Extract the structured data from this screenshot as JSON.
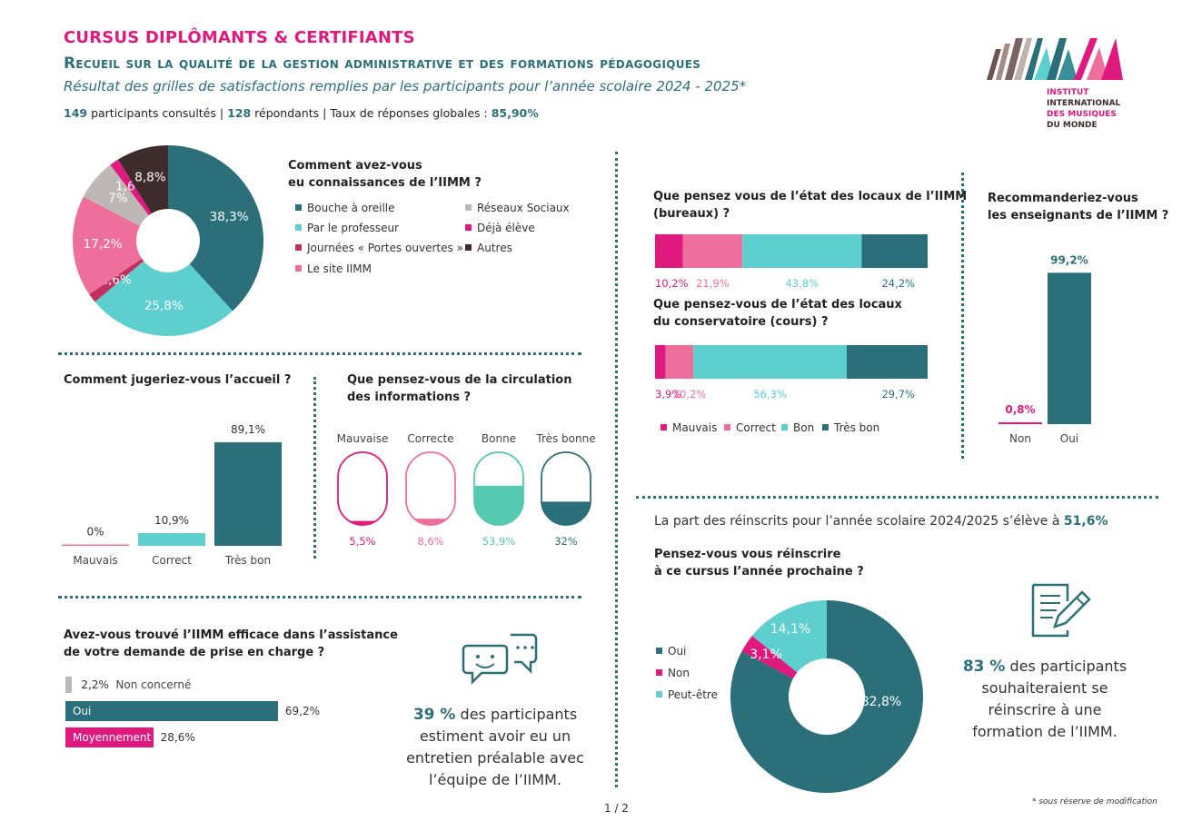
{
  "header": {
    "title1": "CURSUS DIPLÔMANTS & CERTIFIANTS",
    "title2": "Recueil sur la qualité de la gestion administrative et des formations pédagogiques",
    "title3": "Résultat des grilles de satisfactions remplies par les participants pour l’année scolaire 2024 - 2025*",
    "stats": {
      "consulted_num": "149",
      "consulted_label": "participants consultés",
      "sep1": "|",
      "respondents_num": "128",
      "respondents_label": "répondants",
      "sep2": "|",
      "rate_label": "Taux de réponses globales :",
      "rate_value": "85,90%"
    }
  },
  "logo": {
    "line1": "INSTITUT",
    "line2": "INTERNATIONAL",
    "line3": "DES MUSIQUES",
    "line4": "DU MONDE"
  },
  "colors": {
    "teal_dark": "#2b6f7b",
    "teal_light": "#5ecfcf",
    "pink": "#e0197f",
    "pink_light": "#ee6f9b",
    "crimson": "#c2305d",
    "grey": "#bdb7b5",
    "brown": "#3e2c2c",
    "mint": "#55c9b0"
  },
  "chart_data": [
    {
      "id": "connaissance",
      "type": "pie",
      "title": "Comment avez-vous eu connaissances de l’IIMM ?",
      "title_lines": [
        "Comment avez-vous",
        "eu connaissances de l’IIMM ?"
      ],
      "slices": [
        {
          "name": "Bouche à oreille",
          "value": 38.3,
          "label": "38,3%",
          "color": "#2b6f7b"
        },
        {
          "name": "Par le professeur",
          "value": 25.8,
          "label": "25,8%",
          "color": "#5ecfcf"
        },
        {
          "name": "Journées « Portes ouvertes »",
          "value": 1.6,
          "label": "1,6%",
          "color": "#c2305d"
        },
        {
          "name": "Le site IIMM",
          "value": 17.2,
          "label": "17,2%",
          "color": "#ee6f9b"
        },
        {
          "name": "Réseaux Sociaux",
          "value": 7.0,
          "label": "7%",
          "color": "#bdb7b5"
        },
        {
          "name": "Déjà élève",
          "value": 1.6,
          "label": "1,6%",
          "color": "#e0197f"
        },
        {
          "name": "Autres",
          "value": 8.8,
          "label": "8,8%",
          "color": "#3e2c2c"
        }
      ],
      "legend": [
        {
          "name": "Bouche à oreille",
          "color": "#2b6f7b"
        },
        {
          "name": "Réseaux Sociaux",
          "color": "#bdb7b5"
        },
        {
          "name": "Par le professeur",
          "color": "#5ecfcf"
        },
        {
          "name": "Déjà élève",
          "color": "#e0197f"
        },
        {
          "name": "Journées « Portes ouvertes »",
          "color": "#c2305d"
        },
        {
          "name": "Autres",
          "color": "#3e2c2c"
        },
        {
          "name": "Le site IIMM",
          "color": "#ee6f9b"
        }
      ]
    },
    {
      "id": "accueil",
      "type": "bar",
      "title": "Comment jugeriez-vous l’accueil ?",
      "categories": [
        "Mauvais",
        "Correct",
        "Très bon"
      ],
      "values": [
        0,
        10.9,
        89.1
      ],
      "labels": [
        "0%",
        "10,9%",
        "89,1%"
      ],
      "colors": [
        "#ee6f9b",
        "#5ecfcf",
        "#2b6f7b"
      ],
      "ylim": [
        0,
        100
      ]
    },
    {
      "id": "circulation",
      "type": "bar",
      "title": "Que pensez-vous de la circulation des informations ?",
      "title_lines": [
        "Que pensez-vous de la circulation",
        "des informations ?"
      ],
      "categories": [
        "Mauvaise",
        "Correcte",
        "Bonne",
        "Très bonne"
      ],
      "values": [
        5.5,
        8.6,
        53.9,
        32
      ],
      "labels": [
        "5,5%",
        "8,6%",
        "53,9%",
        "32%"
      ],
      "colors": [
        "#e0197f",
        "#ee6f9b",
        "#55c9b0",
        "#2b6f7b"
      ],
      "ylim": [
        0,
        100
      ]
    },
    {
      "id": "assistance",
      "type": "bar",
      "orientation": "horizontal",
      "title": "Avez-vous trouvé l’IIMM efficace dans l’assistance de votre demande de prise en charge ?",
      "title_lines": [
        "Avez-vous trouvé l’IIMM efficace dans l’assistance",
        "de votre demande de prise en charge ?"
      ],
      "categories": [
        "Non concerné",
        "Oui",
        "Moyennement"
      ],
      "values": [
        2.2,
        69.2,
        28.6
      ],
      "labels": [
        "2,2%",
        "69,2%",
        "28,6%"
      ],
      "colors": [
        "#bdb7b5",
        "#2b6f7b",
        "#e0197f"
      ],
      "xlim": [
        0,
        100
      ]
    },
    {
      "id": "locaux_bureaux",
      "type": "bar",
      "orientation": "horizontal",
      "stacked": true,
      "title": "Que pensez vous de l’état des locaux de l’IIMM (bureaux) ?",
      "title_lines": [
        "Que pensez vous de l’état des locaux de l’IIMM",
        "(bureaux) ?"
      ],
      "series": [
        {
          "name": "Mauvais",
          "value": 10.2,
          "label": "10,2%",
          "color": "#e0197f"
        },
        {
          "name": "Correct",
          "value": 21.9,
          "label": "21,9%",
          "color": "#ee6f9b"
        },
        {
          "name": "Bon",
          "value": 43.8,
          "label": "43,8%",
          "color": "#5ecfcf"
        },
        {
          "name": "Très bon",
          "value": 24.2,
          "label": "24,2%",
          "color": "#2b6f7b"
        }
      ]
    },
    {
      "id": "locaux_conservatoire",
      "type": "bar",
      "orientation": "horizontal",
      "stacked": true,
      "title": "Que pensez-vous de l’état des locaux du conservatoire (cours) ?",
      "title_lines": [
        "Que pensez-vous de l’état des locaux",
        "du conservatoire (cours) ?"
      ],
      "series": [
        {
          "name": "Mauvais",
          "value": 3.9,
          "label": "3,9%",
          "color": "#e0197f"
        },
        {
          "name": "Correct",
          "value": 10.2,
          "label": "10,2%",
          "color": "#ee6f9b"
        },
        {
          "name": "Bon",
          "value": 56.3,
          "label": "56,3%",
          "color": "#5ecfcf"
        },
        {
          "name": "Très bon",
          "value": 29.7,
          "label": "29,7%",
          "color": "#2b6f7b"
        }
      ],
      "legend": [
        {
          "name": "Mauvais",
          "color": "#e0197f"
        },
        {
          "name": "Correct",
          "color": "#ee6f9b"
        },
        {
          "name": "Bon",
          "color": "#5ecfcf"
        },
        {
          "name": "Très bon",
          "color": "#2b6f7b"
        }
      ]
    },
    {
      "id": "enseignants",
      "type": "bar",
      "title": "Recommanderiez-vous les enseignants de l’IIMM ?",
      "title_lines": [
        "Recommanderiez-vous",
        "les enseignants de l’IIMM ?"
      ],
      "categories": [
        "Non",
        "Oui"
      ],
      "values": [
        0.8,
        99.2
      ],
      "labels": [
        "0,8%",
        "99,2%"
      ],
      "colors": [
        "#e0197f",
        "#2b6f7b"
      ],
      "ylim": [
        0,
        100
      ]
    },
    {
      "id": "reinscription",
      "type": "pie",
      "title": "Pensez-vous vous réinscrire à ce cursus l’année prochaine ?",
      "title_lines": [
        "Pensez-vous vous réinscrire",
        "à ce cursus l’année prochaine ?"
      ],
      "slices": [
        {
          "name": "Oui",
          "value": 82.8,
          "label": "82,8%",
          "color": "#2b6f7b"
        },
        {
          "name": "Non",
          "value": 3.1,
          "label": "3,1%",
          "color": "#e0197f"
        },
        {
          "name": "Peut-être",
          "value": 14.1,
          "label": "14,1%",
          "color": "#5ecfcf"
        }
      ]
    }
  ],
  "entretien": {
    "percent": "39 %",
    "line1": "des participants",
    "line2": "estiment avoir eu un",
    "line3": "entretien préalable avec",
    "line4": "l’équipe de l’IIMM.",
    "icon": "chat-bubbles-icon"
  },
  "reinscrits": {
    "text": "La part des réinscrits pour l’année scolaire 2024/2025 s’élève à",
    "value": "51,6%"
  },
  "souhait": {
    "percent": "83 %",
    "line1": "des participants",
    "line2": "souhaiteraient se",
    "line3": "réinscrire à une",
    "line4": "formation de l’IIMM.",
    "icon": "form-pencil-icon"
  },
  "footer": {
    "page": "1 / 2",
    "note": "* sous réserve de modification"
  }
}
